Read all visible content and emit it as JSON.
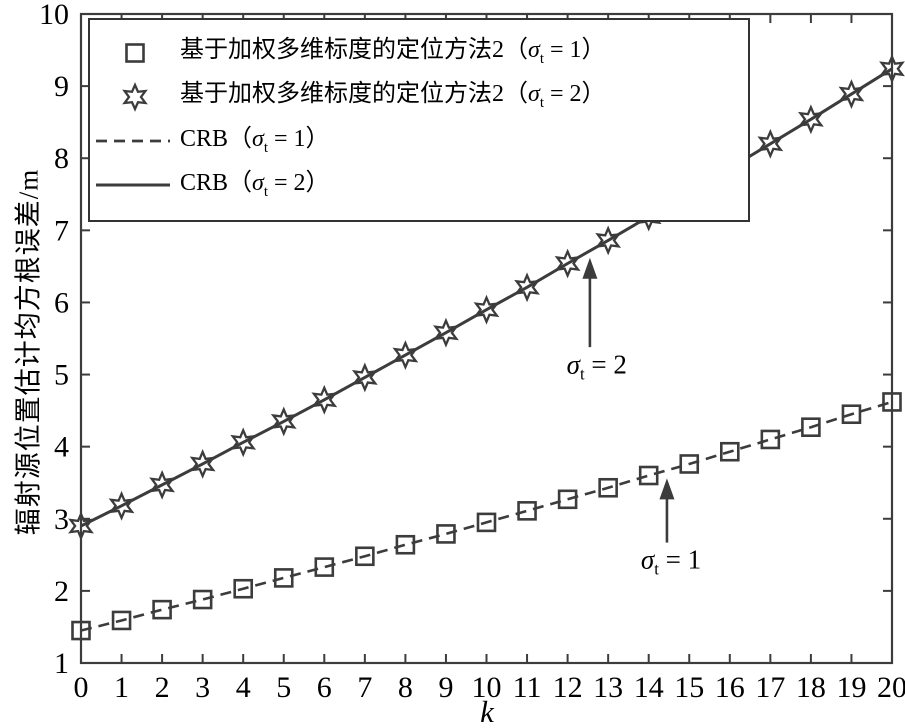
{
  "figure": {
    "y_axis_label": "辐射源位置估计均方根误差/m",
    "x_axis_label": "k"
  },
  "colors": {
    "stroke": "#3c3c3c",
    "text": "#000000",
    "background": "#ffffff"
  },
  "legend": {
    "entries": [
      {
        "marker": "square-marker",
        "main": "基于加权多维标度的定位方法2",
        "paren_open": "（",
        "sigma": "σ",
        "sub": "t",
        "rest": " = 1）"
      },
      {
        "marker": "hexagram-marker",
        "main": "基于加权多维标度的定位方法2",
        "paren_open": "（",
        "sigma": "σ",
        "sub": "t",
        "rest": " = 2）"
      },
      {
        "marker": "dashed-line",
        "main": "CRB",
        "paren_open": "（",
        "sigma": "σ",
        "sub": "t",
        "rest": " = 1）"
      },
      {
        "marker": "solid-line",
        "main": "CRB",
        "paren_open": "（",
        "sigma": "σ",
        "sub": "t",
        "rest": " = 2）"
      }
    ]
  },
  "annotations": [
    {
      "sigma": "σ",
      "sub": "t",
      "rest": " = 2",
      "arrow_k": 12.55,
      "arrow_base_value": 5.38,
      "arrow_tip_value": 6.62,
      "label_k": 12.72,
      "label_value": 5.1
    },
    {
      "sigma": "σ",
      "sub": "t",
      "rest": " = 1",
      "arrow_k": 14.45,
      "arrow_base_value": 2.67,
      "arrow_tip_value": 3.56,
      "label_k": 14.55,
      "label_value": 2.4
    }
  ],
  "chart_data": {
    "type": "line",
    "title": "",
    "xlabel": "k",
    "ylabel": "辐射源位置估计均方根误差/m",
    "xlim": [
      0,
      20
    ],
    "ylim": [
      1,
      10
    ],
    "x_ticks": [
      0,
      1,
      2,
      3,
      4,
      5,
      6,
      7,
      8,
      9,
      10,
      11,
      12,
      13,
      14,
      15,
      16,
      17,
      18,
      19,
      20
    ],
    "y_ticks": [
      1,
      2,
      3,
      4,
      5,
      6,
      7,
      8,
      9,
      10
    ],
    "grid": false,
    "legend_position": "top-left",
    "x": [
      0,
      1,
      2,
      3,
      4,
      5,
      6,
      7,
      8,
      9,
      10,
      11,
      12,
      13,
      14,
      15,
      16,
      17,
      18,
      19,
      20
    ],
    "series": [
      {
        "name": "基于加权多维标度的定位方法2（σt = 1）",
        "type": "markers",
        "marker": "square",
        "values": [
          1.45,
          1.59,
          1.74,
          1.88,
          2.03,
          2.18,
          2.33,
          2.48,
          2.64,
          2.79,
          2.95,
          3.11,
          3.27,
          3.43,
          3.6,
          3.76,
          3.93,
          4.1,
          4.27,
          4.45,
          4.62
        ]
      },
      {
        "name": "基于加权多维标度的定位方法2（σt = 2）",
        "type": "markers",
        "marker": "hexagram",
        "values": [
          2.9,
          3.18,
          3.47,
          3.76,
          4.06,
          4.35,
          4.65,
          4.96,
          5.27,
          5.58,
          5.9,
          6.21,
          6.54,
          6.86,
          7.19,
          7.52,
          7.86,
          8.2,
          8.54,
          8.89,
          9.24
        ]
      },
      {
        "name": "CRB（σt = 1）",
        "type": "line",
        "line_style": "dashed",
        "values": [
          1.45,
          1.59,
          1.74,
          1.88,
          2.03,
          2.18,
          2.33,
          2.48,
          2.64,
          2.79,
          2.95,
          3.11,
          3.27,
          3.43,
          3.6,
          3.76,
          3.93,
          4.1,
          4.27,
          4.45,
          4.62
        ]
      },
      {
        "name": "CRB（σt = 2）",
        "type": "line",
        "line_style": "solid",
        "values": [
          2.9,
          3.18,
          3.47,
          3.76,
          4.06,
          4.35,
          4.65,
          4.96,
          5.27,
          5.58,
          5.9,
          6.21,
          6.54,
          6.86,
          7.19,
          7.52,
          7.86,
          8.2,
          8.54,
          8.89,
          9.24
        ]
      }
    ]
  }
}
